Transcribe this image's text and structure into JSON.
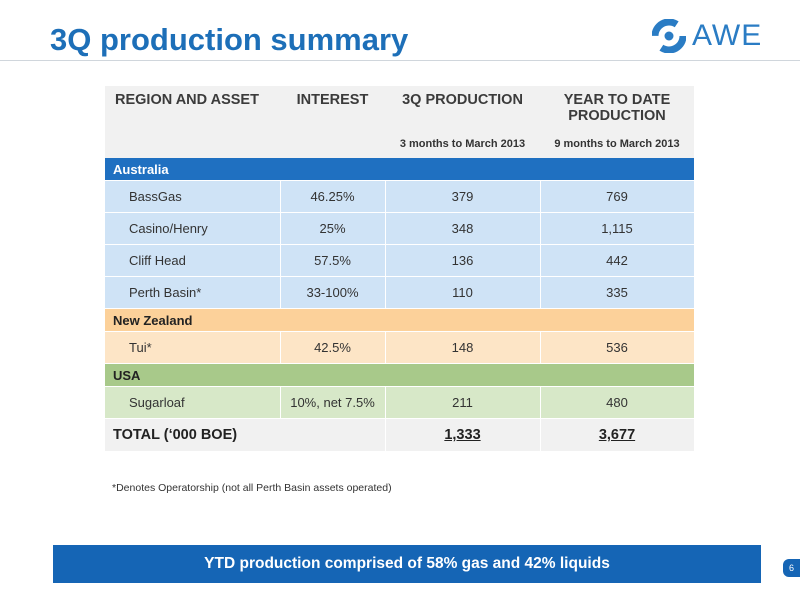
{
  "slide": {
    "title": "3Q production summary",
    "logo_text": "AWE",
    "page_number": "6"
  },
  "table": {
    "headers": [
      "REGION AND ASSET",
      "INTEREST",
      "3Q PRODUCTION",
      "YEAR TO DATE PRODUCTION"
    ],
    "subheaders": [
      "",
      "",
      "3 months to March 2013",
      "9 months to March 2013"
    ],
    "regions": [
      {
        "name": "Australia",
        "rows": [
          {
            "asset": "BassGas",
            "interest": "46.25%",
            "q3": "379",
            "ytd": "769"
          },
          {
            "asset": "Casino/Henry",
            "interest": "25%",
            "q3": "348",
            "ytd": "1,115"
          },
          {
            "asset": "Cliff Head",
            "interest": "57.5%",
            "q3": "136",
            "ytd": "442"
          },
          {
            "asset": "Perth Basin*",
            "interest": "33-100%",
            "q3": "110",
            "ytd": "335"
          }
        ]
      },
      {
        "name": "New Zealand",
        "rows": [
          {
            "asset": "Tui*",
            "interest": "42.5%",
            "q3": "148",
            "ytd": "536"
          }
        ]
      },
      {
        "name": "USA",
        "rows": [
          {
            "asset": "Sugarloaf",
            "interest": "10%, net 7.5%",
            "q3": "211",
            "ytd": "480"
          }
        ]
      }
    ],
    "total": {
      "label": "TOTAL (‘000 BOE)",
      "q3": "1,333",
      "ytd": "3,677"
    }
  },
  "footnote": "*Denotes Operatorship (not all Perth Basin assets operated)",
  "banner": "YTD production comprised of 58% gas and 42% liquids",
  "colors": {
    "brand_blue": "#1d6fb8",
    "australia": "#1f70c1",
    "new_zealand": "#fcd19a",
    "usa": "#a8c98a"
  }
}
